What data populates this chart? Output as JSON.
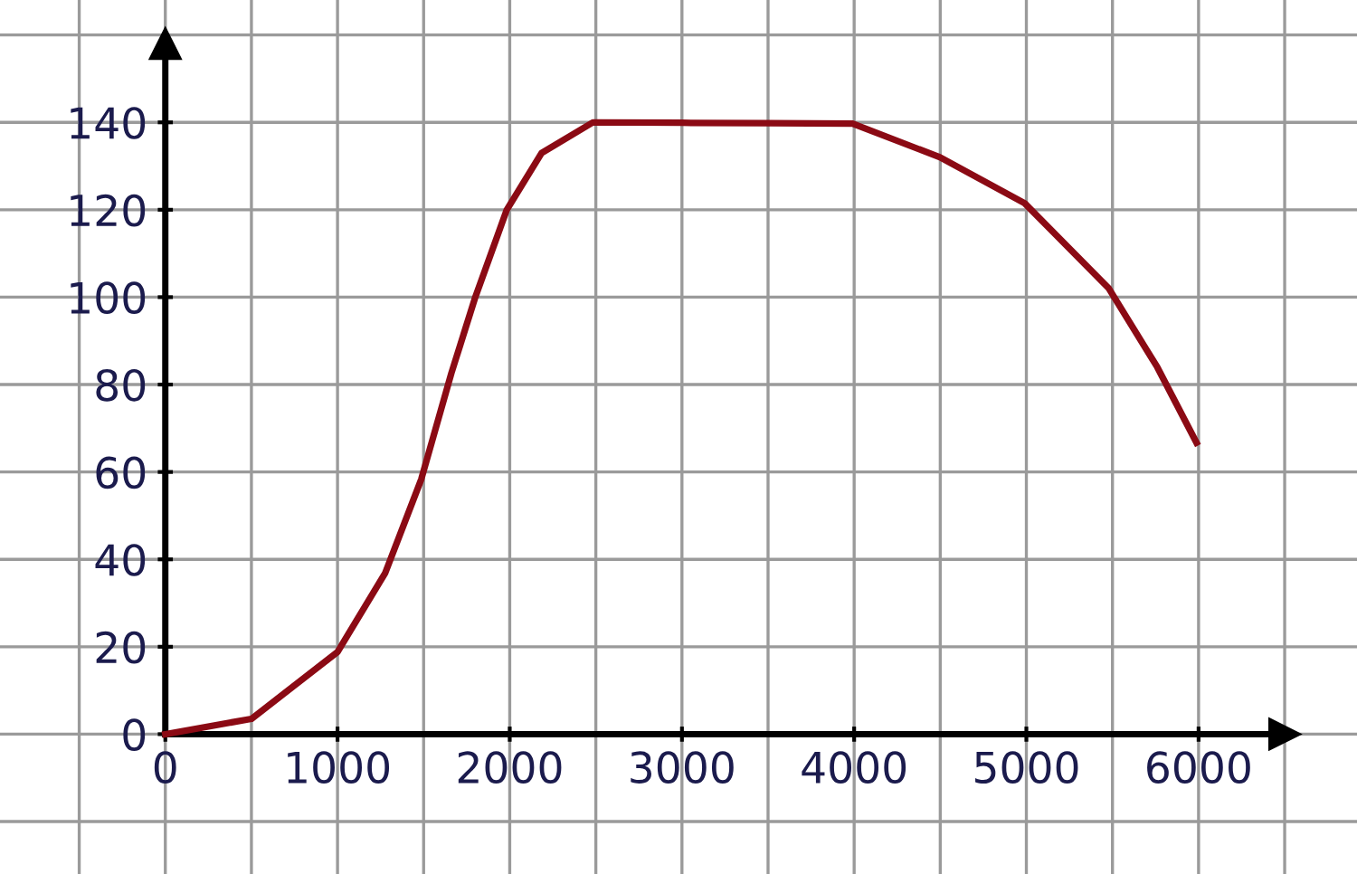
{
  "chart_data": {
    "type": "line",
    "x": [
      0,
      500,
      1000,
      1276,
      1486,
      1661,
      1800,
      1983,
      2185,
      2483,
      3000,
      3500,
      3991,
      4499,
      4990,
      5479,
      5760,
      5988
    ],
    "series": [
      {
        "color": "#8b0a14",
        "values": [
          0,
          3.5,
          18.8,
          36.8,
          58.3,
          82.6,
          100,
          120,
          133,
          140,
          139.9,
          139.8,
          139.7,
          132,
          121.5,
          102,
          84,
          66.7
        ]
      }
    ],
    "xlim": [
      -960,
      6920
    ],
    "ylim": [
      -32,
      168
    ],
    "xticks": [
      0,
      1000,
      2000,
      3000,
      4000,
      5000,
      6000
    ],
    "yticks": [
      0,
      20,
      40,
      60,
      80,
      100,
      120,
      140
    ],
    "grid": true
  }
}
